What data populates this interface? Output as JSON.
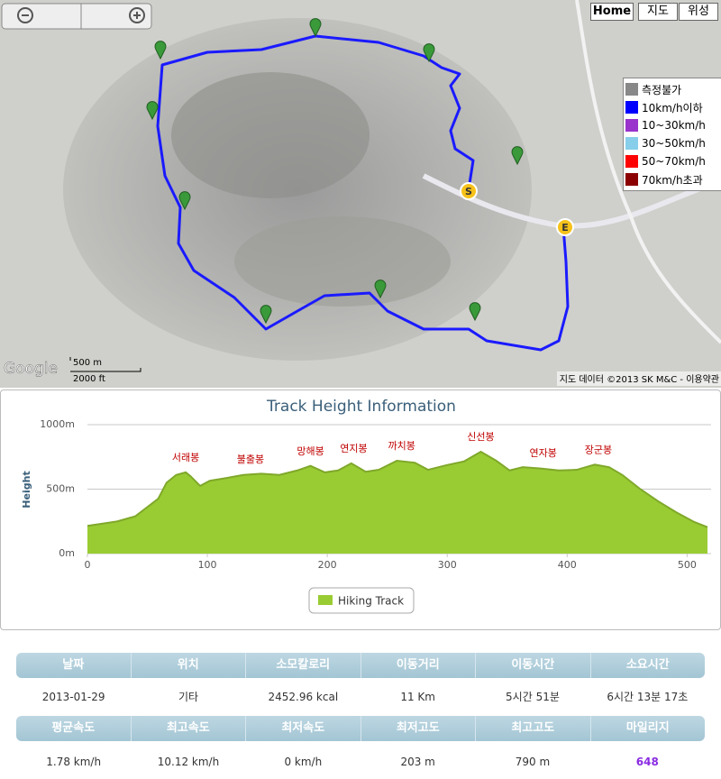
{
  "map": {
    "buttons": [
      "Home",
      "지도",
      "위성"
    ],
    "legend": [
      {
        "label": "측정불가",
        "color": "#888888"
      },
      {
        "label": "10km/h이하",
        "color": "#0000ff"
      },
      {
        "label": "10~30km/h",
        "color": "#9933cc"
      },
      {
        "label": "30~50km/h",
        "color": "#87ceeb"
      },
      {
        "label": "50~70km/h",
        "color": "#ff0000"
      },
      {
        "label": "70km/h초과",
        "color": "#8b0000"
      }
    ],
    "start": "S",
    "end": "E",
    "logo": "Google",
    "scale_metric": "500 m",
    "scale_imperial": "2000 ft",
    "copyright": "지도 데이터 ©2013 SK M&C - 이용약관"
  },
  "chart_data": {
    "type": "area",
    "title": "Track Height Information",
    "y_label": "Height",
    "x": [
      0,
      25,
      40,
      47,
      59,
      66,
      74,
      82,
      86,
      94,
      102,
      115,
      130,
      145,
      160,
      175,
      186,
      198,
      209,
      220,
      232,
      243,
      258,
      273,
      284,
      299,
      314,
      328,
      341,
      352,
      363,
      378,
      393,
      408,
      423,
      435,
      446,
      461,
      476,
      491,
      506,
      517
    ],
    "series": [
      {
        "name": "Hiking Track",
        "color": "#99cc33",
        "values": [
          215,
          250,
          290,
          340,
          425,
          550,
          610,
          630,
          600,
          525,
          565,
          585,
          610,
          620,
          610,
          645,
          680,
          630,
          645,
          700,
          635,
          650,
          720,
          705,
          650,
          685,
          715,
          790,
          720,
          645,
          670,
          660,
          645,
          650,
          690,
          670,
          610,
          500,
          405,
          320,
          245,
          205
        ]
      }
    ],
    "xlim": [
      0,
      520
    ],
    "xticks": [
      0,
      100,
      200,
      300,
      400,
      500
    ],
    "ylim": [
      0,
      1000
    ],
    "yticks": [
      {
        "value": 0,
        "label": "0m"
      },
      {
        "value": 500,
        "label": "500m"
      },
      {
        "value": 1000,
        "label": "1000m"
      }
    ],
    "grid": true,
    "annotations": [
      {
        "text": "서래봉",
        "x": 82,
        "y": 630
      },
      {
        "text": "불출봉",
        "x": 136,
        "y": 615
      },
      {
        "text": "망해봉",
        "x": 186,
        "y": 680
      },
      {
        "text": "연지봉",
        "x": 222,
        "y": 700
      },
      {
        "text": "까치봉",
        "x": 262,
        "y": 720
      },
      {
        "text": "신선봉",
        "x": 328,
        "y": 790
      },
      {
        "text": "연자봉",
        "x": 380,
        "y": 665
      },
      {
        "text": "장군봉",
        "x": 426,
        "y": 690
      }
    ]
  },
  "stats": [
    {
      "headers": [
        "날짜",
        "위치",
        "소모칼로리",
        "이동거리",
        "이동시간",
        "소요시간"
      ],
      "values": [
        "2013-01-29",
        "기타",
        "2452.96 kcal",
        "11 Km",
        "5시간 51분",
        "6시간 13분 17초"
      ]
    },
    {
      "headers": [
        "평균속도",
        "최고속도",
        "최저속도",
        "최저고도",
        "최고고도",
        "마일리지"
      ],
      "values": [
        "1.78 km/h",
        "10.12 km/h",
        "0 km/h",
        "203 m",
        "790 m",
        "648"
      ]
    }
  ]
}
